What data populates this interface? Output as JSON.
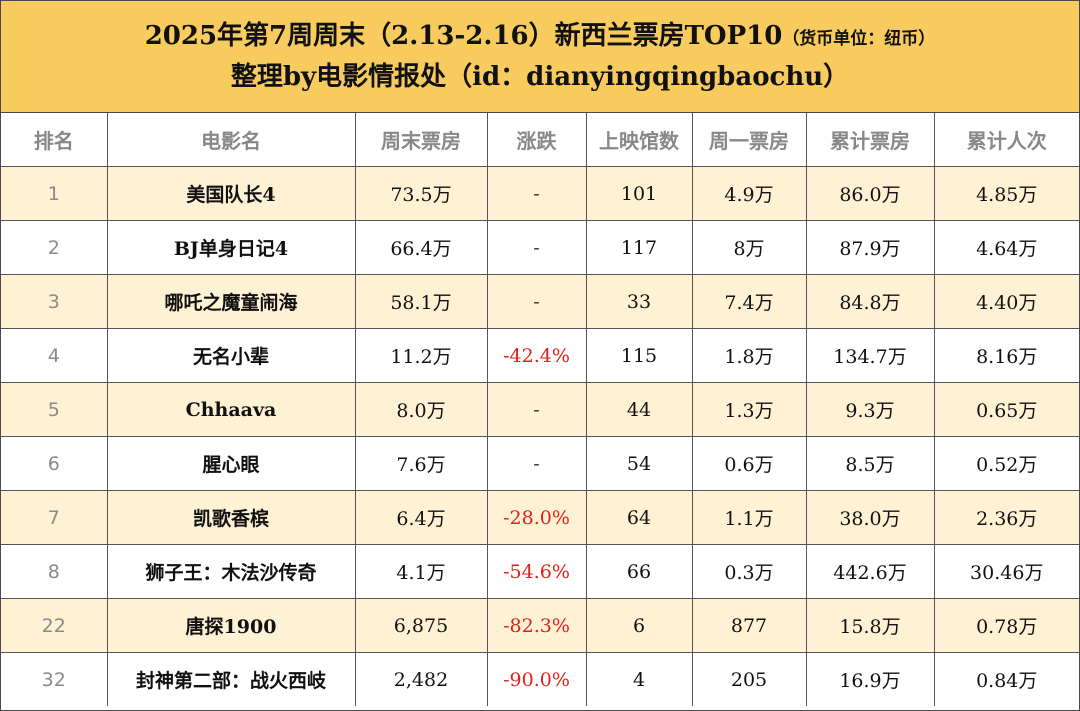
{
  "header": {
    "title_main": "2025年第7周周末（2.13-2.16）新西兰票房TOP10",
    "title_note": "（货币单位：纽币）",
    "subtitle": "整理by电影情报处（id：dianyingqingbaochu）"
  },
  "table": {
    "columns": [
      "排名",
      "电影名",
      "周末票房",
      "涨跌",
      "上映馆数",
      "周一票房",
      "累计票房",
      "累计人次"
    ],
    "rows": [
      {
        "rank": "1",
        "title": "美国队长4",
        "weekend": "73.5万",
        "change": "-",
        "theaters": "101",
        "monday": "4.9万",
        "total": "86.0万",
        "admissions": "4.85万"
      },
      {
        "rank": "2",
        "title": "BJ单身日记4",
        "weekend": "66.4万",
        "change": "-",
        "theaters": "117",
        "monday": "8万",
        "total": "87.9万",
        "admissions": "4.64万"
      },
      {
        "rank": "3",
        "title": "哪吒之魔童闹海",
        "weekend": "58.1万",
        "change": "-",
        "theaters": "33",
        "monday": "7.4万",
        "total": "84.8万",
        "admissions": "4.40万"
      },
      {
        "rank": "4",
        "title": "无名小辈",
        "weekend": "11.2万",
        "change": "-42.4%",
        "theaters": "115",
        "monday": "1.8万",
        "total": "134.7万",
        "admissions": "8.16万"
      },
      {
        "rank": "5",
        "title": "Chhaava",
        "weekend": "8.0万",
        "change": "-",
        "theaters": "44",
        "monday": "1.3万",
        "total": "9.3万",
        "admissions": "0.65万"
      },
      {
        "rank": "6",
        "title": "腥心眼",
        "weekend": "7.6万",
        "change": "-",
        "theaters": "54",
        "monday": "0.6万",
        "total": "8.5万",
        "admissions": "0.52万"
      },
      {
        "rank": "7",
        "title": "凯歌香槟",
        "weekend": "6.4万",
        "change": "-28.0%",
        "theaters": "64",
        "monday": "1.1万",
        "total": "38.0万",
        "admissions": "2.36万"
      },
      {
        "rank": "8",
        "title": "狮子王：木法沙传奇",
        "weekend": "4.1万",
        "change": "-54.6%",
        "theaters": "66",
        "monday": "0.3万",
        "total": "442.6万",
        "admissions": "30.46万"
      },
      {
        "rank": "22",
        "title": "唐探1900",
        "weekend": "6,875",
        "change": "-82.3%",
        "theaters": "6",
        "monday": "877",
        "total": "15.8万",
        "admissions": "0.78万"
      },
      {
        "rank": "32",
        "title": "封神第二部：战火西岐",
        "weekend": "2,482",
        "change": "-90.0%",
        "theaters": "4",
        "monday": "205",
        "total": "16.9万",
        "admissions": "0.84万"
      }
    ]
  },
  "colors": {
    "header_bg": "#f7cb5e",
    "row_highlight": "#fff1d4",
    "negative_change": "#e0201a"
  }
}
